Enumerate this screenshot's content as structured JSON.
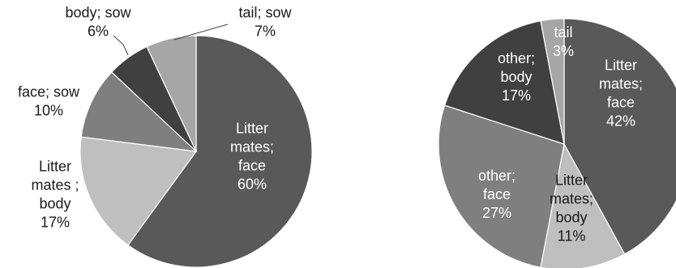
{
  "chart_data": [
    {
      "type": "pie",
      "slices": [
        {
          "label_lines": [
            "Litter",
            "mates;",
            "face",
            "60%"
          ],
          "category": "Litter mates; face",
          "value": 60,
          "color": "#595959",
          "label_color": "#ffffff"
        },
        {
          "label_lines": [
            "Litter",
            "mates ;",
            "body",
            "17%"
          ],
          "category": "Litter mates ; body",
          "value": 17,
          "color": "#bfbfbf",
          "label_color": "#1a1a1a"
        },
        {
          "label_lines": [
            "face; sow",
            "10%"
          ],
          "category": "face; sow",
          "value": 10,
          "color": "#7f7f7f",
          "label_color": "#1a1a1a"
        },
        {
          "label_lines": [
            "body; sow",
            "6%"
          ],
          "category": "body; sow",
          "value": 6,
          "color": "#404040",
          "label_color": "#1a1a1a"
        },
        {
          "label_lines": [
            "tail; sow",
            "7%"
          ],
          "category": "tail; sow",
          "value": 7,
          "color": "#a6a6a6",
          "label_color": "#1a1a1a"
        }
      ]
    },
    {
      "type": "pie",
      "slices": [
        {
          "label_lines": [
            "Litter",
            "mates;",
            "face",
            "42%"
          ],
          "category": "Litter mates; face",
          "value": 42,
          "color": "#595959",
          "label_color": "#ffffff"
        },
        {
          "label_lines": [
            "Litter",
            "mates;",
            "body",
            "11%"
          ],
          "category": "Litter mates; body",
          "value": 11,
          "color": "#bfbfbf",
          "label_color": "#1a1a1a"
        },
        {
          "label_lines": [
            "other;",
            "face",
            "27%"
          ],
          "category": "other; face",
          "value": 27,
          "color": "#7f7f7f",
          "label_color": "#ffffff"
        },
        {
          "label_lines": [
            "other;",
            "body",
            "17%"
          ],
          "category": "other; body",
          "value": 17,
          "color": "#404040",
          "label_color": "#ffffff"
        },
        {
          "label_lines": [
            "other;",
            "tail",
            "3%"
          ],
          "category": "other; tail",
          "value": 3,
          "color": "#a6a6a6",
          "label_color": "#ffffff"
        }
      ]
    }
  ]
}
